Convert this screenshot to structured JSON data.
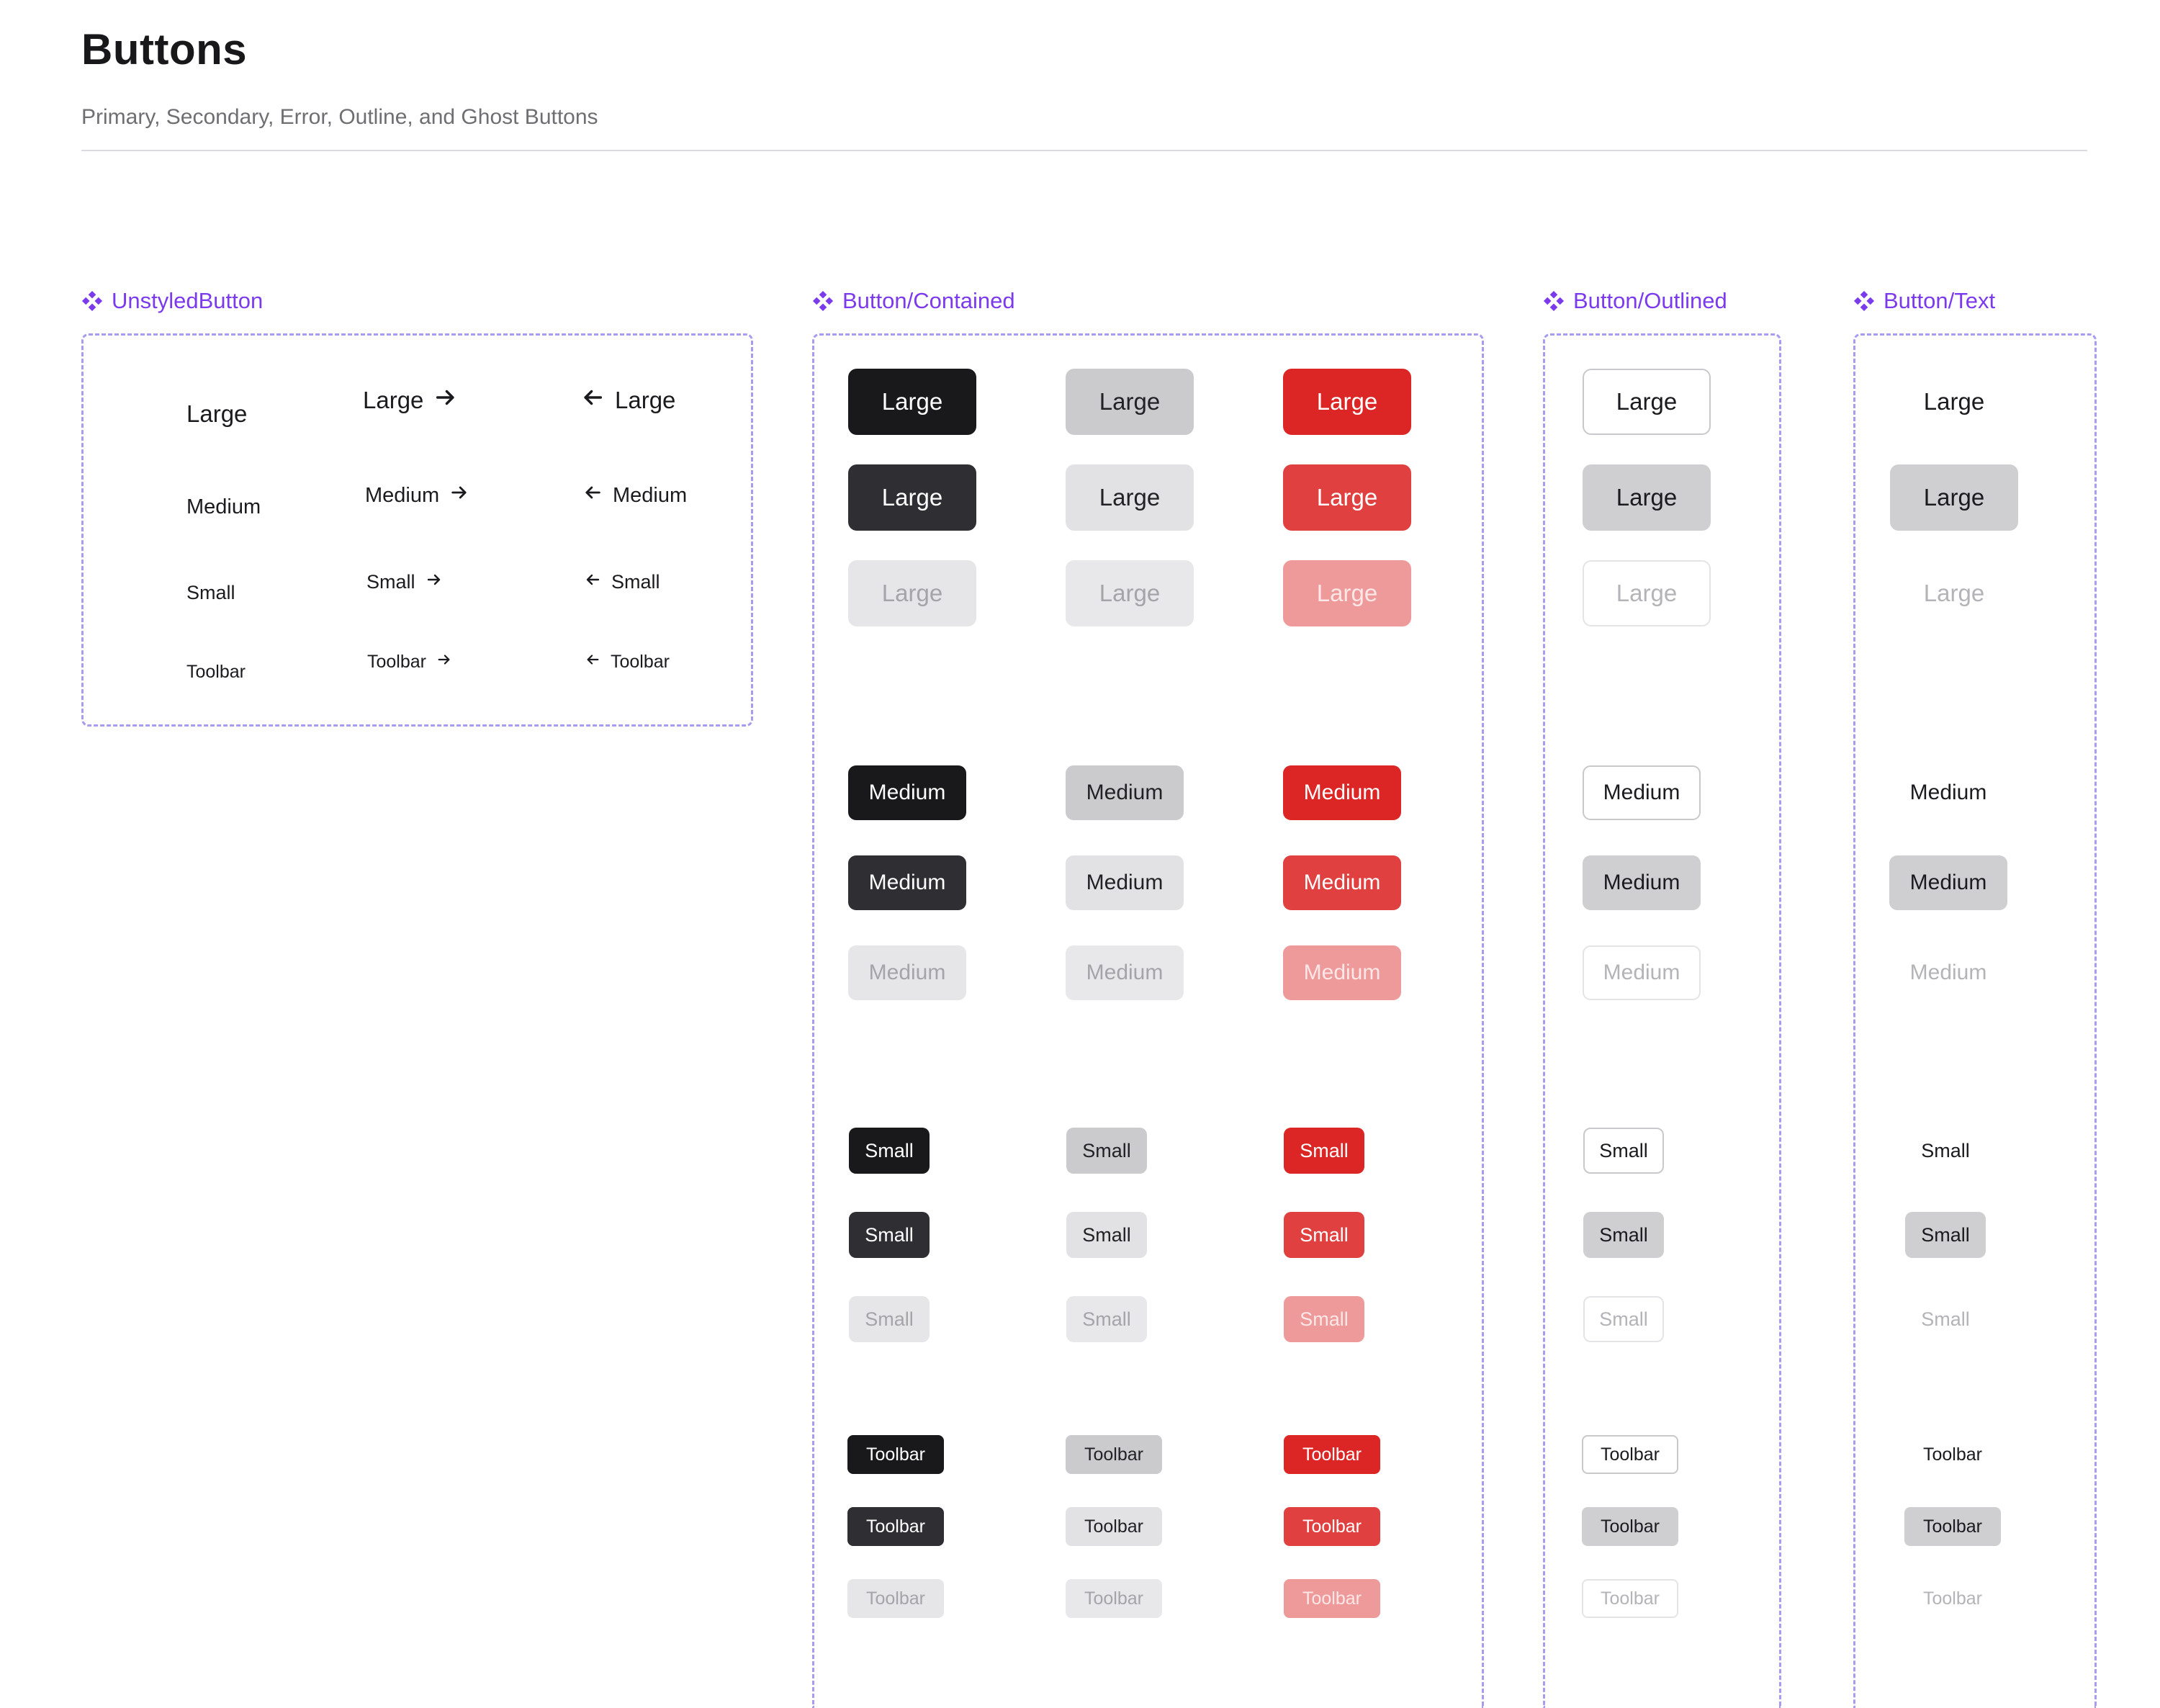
{
  "header": {
    "title": "Buttons",
    "subtitle": "Primary, Secondary, Error, Outline, and Ghost Buttons"
  },
  "colors": {
    "accent_purple": "#7c3aed",
    "frame_dash": "#a69cf0",
    "primary": "#19191c",
    "secondary": "#cbcbcd",
    "error": "#dc2626",
    "error_disabled": "#ee9a9a"
  },
  "sections": {
    "unstyled": {
      "label": "UnstyledButton",
      "icon": "component-diamond-icon"
    },
    "contained": {
      "label": "Button/Contained",
      "icon": "component-diamond-icon"
    },
    "outlined": {
      "label": "Button/Outlined",
      "icon": "component-diamond-icon"
    },
    "text": {
      "label": "Button/Text",
      "icon": "component-diamond-icon"
    }
  },
  "sizes": {
    "large": "Large",
    "medium": "Medium",
    "small": "Small",
    "toolbar": "Toolbar"
  },
  "icons": {
    "trailing": "arrow-right-icon",
    "leading": "arrow-left-icon"
  }
}
